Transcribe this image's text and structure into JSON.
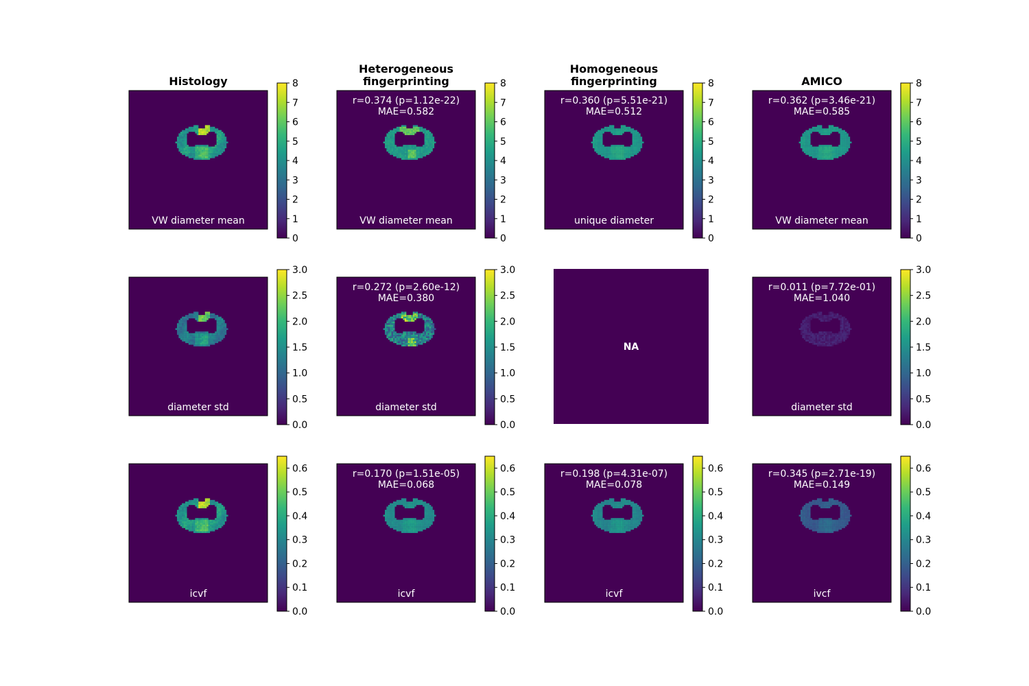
{
  "colors": {
    "background": "#440154",
    "viridis": [
      "#440154",
      "#482878",
      "#3e4989",
      "#31688e",
      "#26828e",
      "#1f9e89",
      "#35b779",
      "#6ece58",
      "#b5de2b",
      "#fde725"
    ]
  },
  "columns": [
    {
      "title_lines": [
        "Histology"
      ]
    },
    {
      "title_lines": [
        "Heterogeneous",
        "fingerprinting"
      ]
    },
    {
      "title_lines": [
        "Homogeneous",
        "fingerprinting"
      ]
    },
    {
      "title_lines": [
        "AMICO"
      ]
    }
  ],
  "chart_data": {
    "type": "heatmap",
    "colormap": "viridis",
    "rows": [
      {
        "colorbar_range": [
          0,
          8
        ],
        "colorbar_ticks": [
          "0",
          "1",
          "2",
          "3",
          "4",
          "5",
          "6",
          "7",
          "8"
        ],
        "panels": [
          {
            "label": "VW diameter mean",
            "stats": [],
            "fill": 0.55,
            "pattern": "histology",
            "na": false
          },
          {
            "label": "VW diameter mean",
            "stats": [
              "r=0.374 (p=1.12e-22)",
              "MAE=0.582"
            ],
            "fill": 0.56,
            "pattern": "hetero",
            "na": false
          },
          {
            "label": "unique diameter",
            "stats": [
              "r=0.360 (p=5.51e-21)",
              "MAE=0.512"
            ],
            "fill": 0.55,
            "pattern": "smooth",
            "na": false
          },
          {
            "label": "VW diameter mean",
            "stats": [
              "r=0.362 (p=3.46e-21)",
              "MAE=0.585"
            ],
            "fill": 0.55,
            "pattern": "smooth",
            "na": false
          }
        ]
      },
      {
        "colorbar_range": [
          0,
          3
        ],
        "colorbar_ticks": [
          "0.0",
          "0.5",
          "1.0",
          "1.5",
          "2.0",
          "2.5",
          "3.0"
        ],
        "panels": [
          {
            "label": "diameter std",
            "stats": [],
            "fill": 0.42,
            "pattern": "histology",
            "na": false
          },
          {
            "label": "diameter std",
            "stats": [
              "r=0.272 (p=2.60e-12)",
              "MAE=0.380"
            ],
            "fill": 0.45,
            "pattern": "noisy",
            "na": false
          },
          {
            "label": "",
            "stats": [],
            "fill": 0,
            "pattern": "none",
            "na": true,
            "na_text": "NA"
          },
          {
            "label": "diameter std",
            "stats": [
              "r=0.011 (p=7.72e-01)",
              "MAE=1.040"
            ],
            "fill": 0.09,
            "pattern": "noisy-low",
            "na": false
          }
        ]
      },
      {
        "colorbar_range": [
          0,
          0.65
        ],
        "colorbar_ticks": [
          "0.0",
          "0.1",
          "0.2",
          "0.3",
          "0.4",
          "0.5",
          "0.6"
        ],
        "panels": [
          {
            "label": "icvf",
            "stats": [],
            "fill": 0.55,
            "pattern": "histology",
            "na": false
          },
          {
            "label": "icvf",
            "stats": [
              "r=0.170 (p=1.51e-05)",
              "MAE=0.068"
            ],
            "fill": 0.5,
            "pattern": "smooth",
            "na": false
          },
          {
            "label": "icvf",
            "stats": [
              "r=0.198 (p=4.31e-07)",
              "MAE=0.078"
            ],
            "fill": 0.48,
            "pattern": "smooth",
            "na": false
          },
          {
            "label": "ivcf",
            "stats": [
              "r=0.345 (p=2.71e-19)",
              "MAE=0.149"
            ],
            "fill": 0.3,
            "pattern": "smooth",
            "na": false
          }
        ]
      }
    ]
  }
}
